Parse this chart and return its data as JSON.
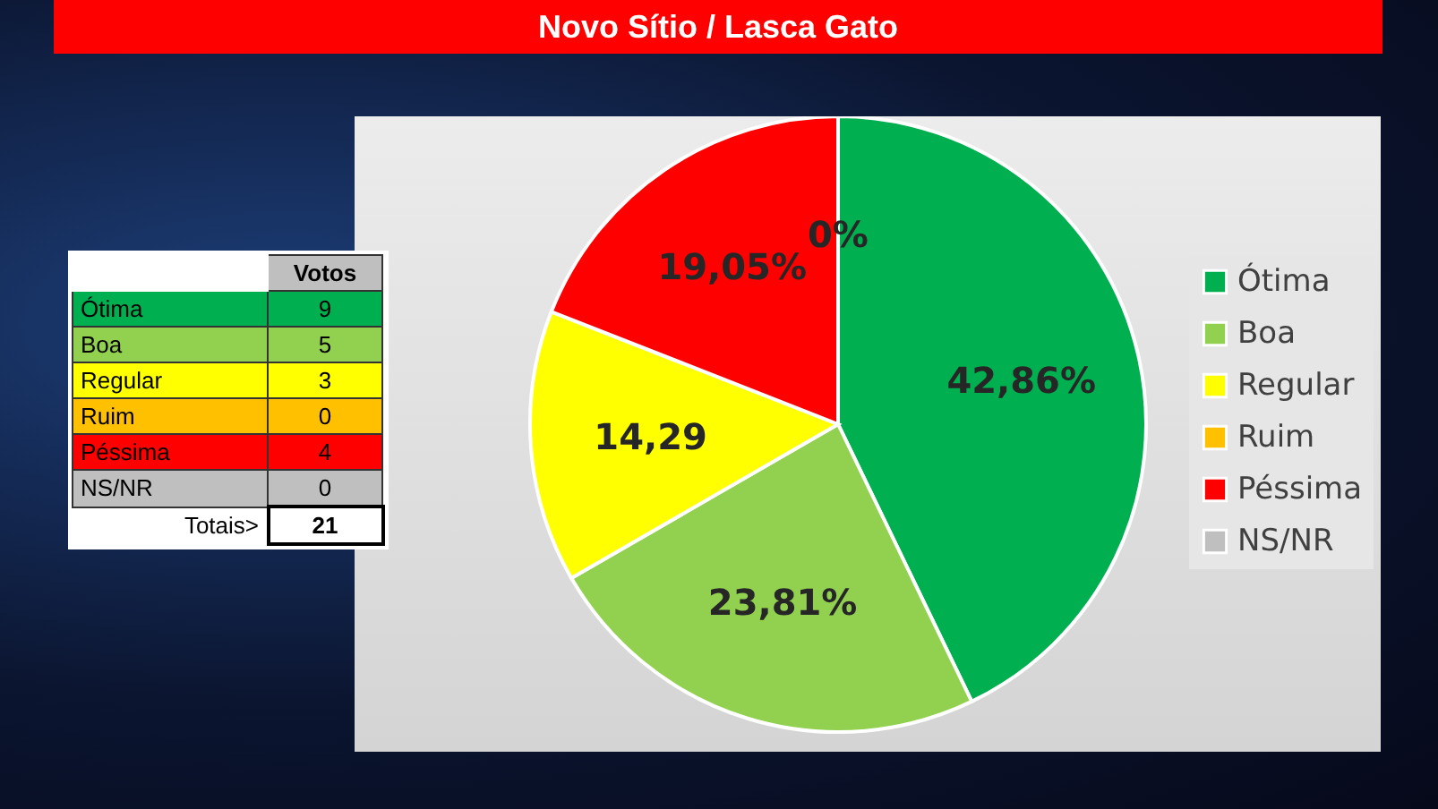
{
  "chart_data": [
    {
      "type": "pie",
      "title": "Novo Sítio / Lasca Gato",
      "categories": [
        "Ótima",
        "Boa",
        "Regular",
        "Ruim",
        "Péssima",
        "NS/NR"
      ],
      "values": [
        42.86,
        23.81,
        14.29,
        0,
        19.05,
        0
      ],
      "colors": [
        "#00b050",
        "#92d050",
        "#ffff00",
        "#ffc000",
        "#ff0000",
        "#bfbfbf"
      ],
      "value_labels": [
        "42,86%",
        "23,81%",
        "14,29",
        null,
        "19,05%",
        "0%"
      ],
      "legend": "right"
    },
    {
      "type": "other",
      "categories": [
        "Ótima",
        "Boa",
        "Regular",
        "Ruim",
        "Péssima",
        "NS/NR"
      ],
      "values": [
        9,
        5,
        3,
        0,
        4,
        0
      ],
      "colors": [
        "#00b050",
        "#92d050",
        "#ffff00",
        "#ffc000",
        "#ff0000",
        "#bfbfbf"
      ],
      "data_labels": true,
      "annotations": [
        "Votos",
        "Totais>",
        "21"
      ]
    }
  ]
}
